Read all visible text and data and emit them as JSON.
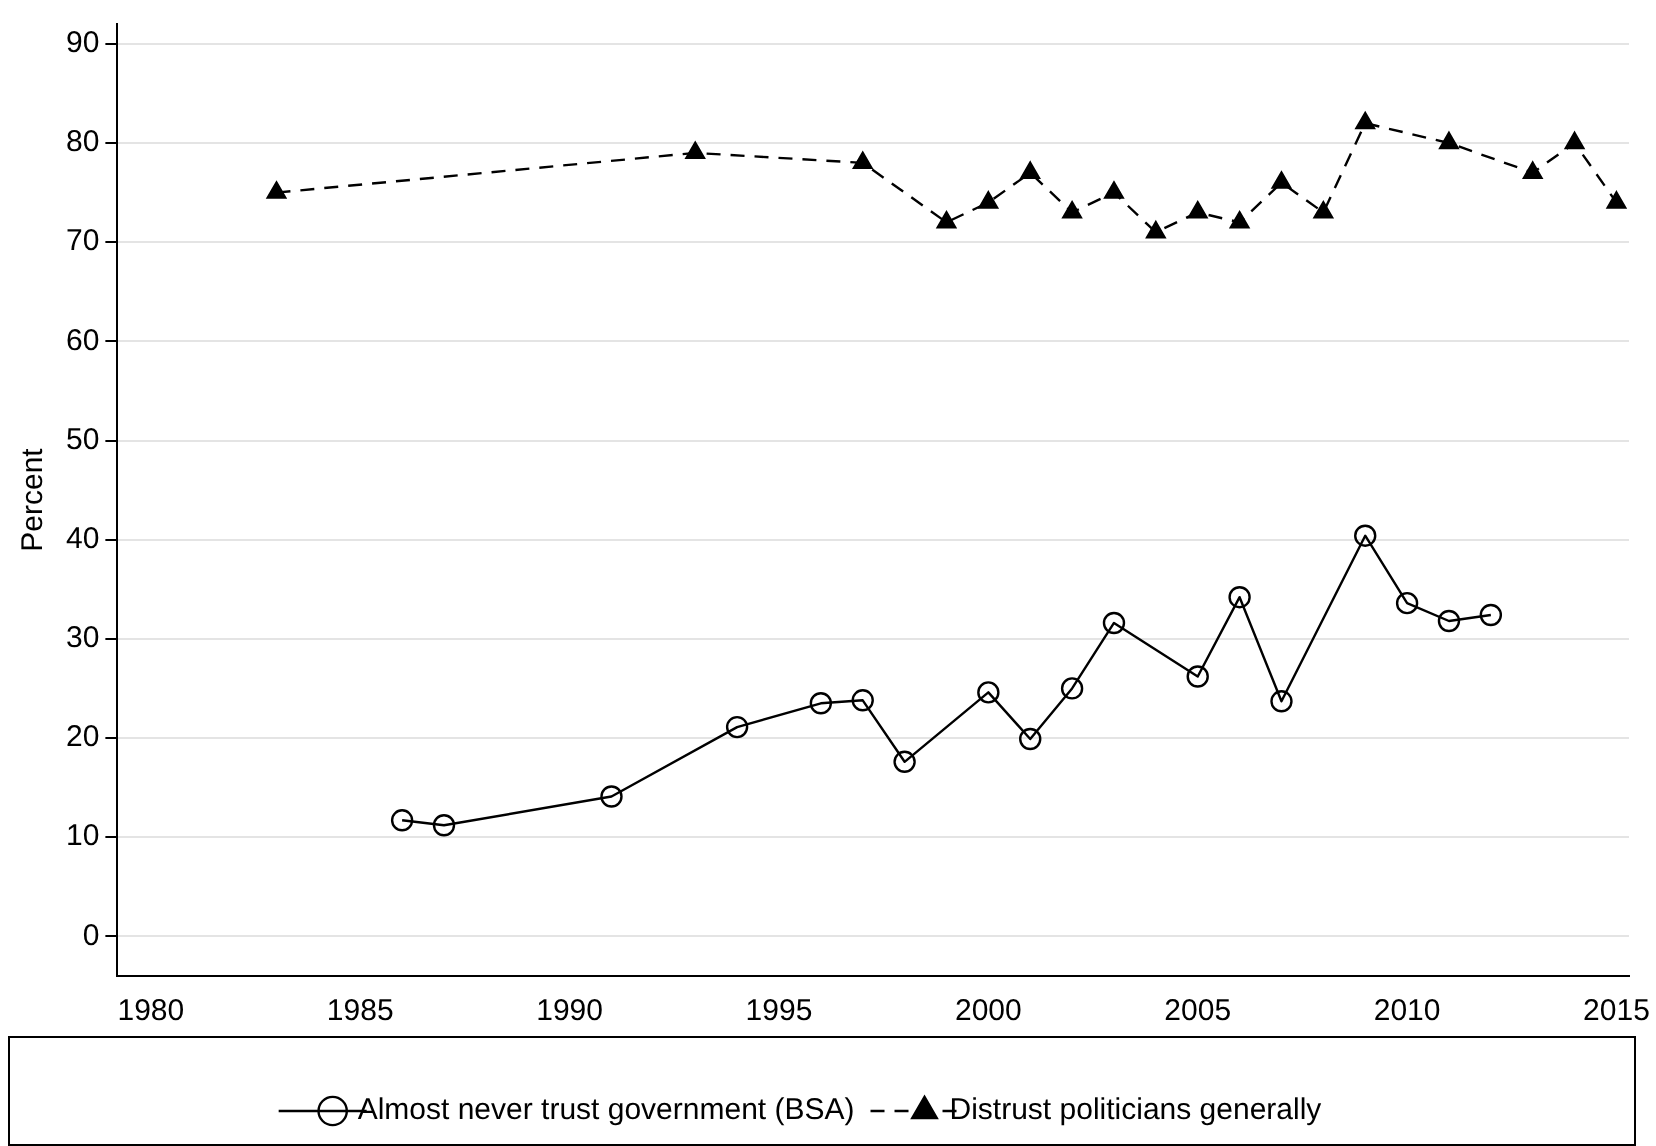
{
  "chart_data": {
    "type": "line",
    "ylabel": "Percent",
    "xlim": [
      1979.2,
      2015.3
    ],
    "ylim": [
      -4,
      92
    ],
    "xticks": [
      1980,
      1985,
      1990,
      1995,
      2000,
      2005,
      2010,
      2015
    ],
    "yticks": [
      0,
      10,
      20,
      30,
      40,
      50,
      60,
      70,
      80,
      90
    ],
    "grid": "y",
    "legend": "bottom",
    "series": [
      {
        "name": "Almost never trust government (BSA)",
        "color": "#000000",
        "marker": "circle",
        "line_style": "solid",
        "x": [
          1986,
          1987,
          1991,
          1994,
          1996,
          1997,
          1998,
          2000,
          2001,
          2002,
          2003,
          2005,
          2006,
          2007,
          2009,
          2010,
          2011,
          2012
        ],
        "values": [
          11.7,
          11.2,
          14.1,
          21.1,
          23.5,
          23.8,
          17.6,
          24.6,
          19.9,
          25.0,
          31.6,
          26.2,
          34.2,
          23.7,
          40.4,
          33.6,
          31.8,
          32.4
        ]
      },
      {
        "name": "Distrust politicians generally",
        "color": "#000000",
        "marker": "triangle",
        "line_style": "dashed",
        "x": [
          1983,
          1993,
          1997,
          1999,
          2000,
          2001,
          2002,
          2003,
          2004,
          2005,
          2006,
          2007,
          2008,
          2009,
          2011,
          2013,
          2014,
          2015
        ],
        "values": [
          75,
          79,
          78,
          72,
          74,
          77,
          73,
          75,
          71,
          73,
          72,
          76,
          73,
          82,
          80,
          77,
          80,
          74
        ]
      }
    ]
  }
}
